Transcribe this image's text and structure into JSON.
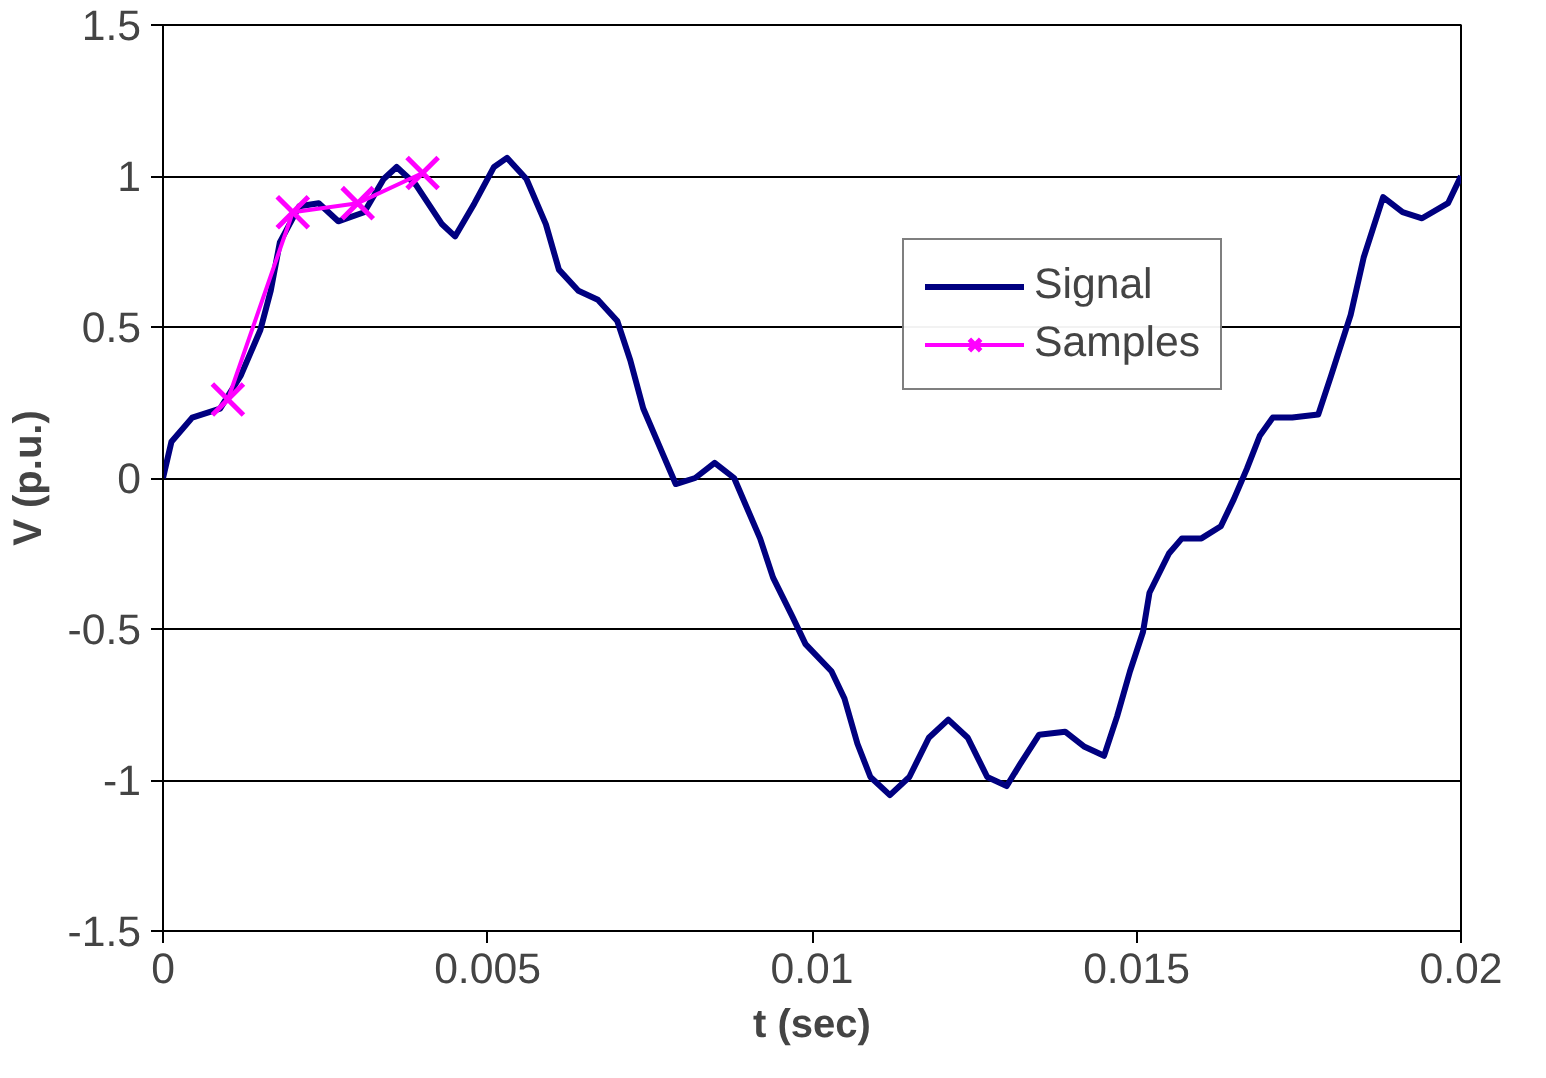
{
  "chart_data": {
    "type": "line",
    "xlabel": "t (sec)",
    "ylabel": "V (p.u.)",
    "xlim": [
      0,
      0.02
    ],
    "ylim": [
      -1.5,
      1.5
    ],
    "xticks": [
      0,
      0.005,
      0.01,
      0.015,
      0.02
    ],
    "yticks": [
      -1.5,
      -1,
      -0.5,
      0,
      0.5,
      1,
      1.5
    ],
    "grid": "y",
    "legend": "right",
    "series": [
      {
        "name": "Signal",
        "color": "#000080",
        "marker": "none",
        "x": [
          0,
          0.00013,
          0.00045,
          0.00088,
          0.0012,
          0.0015,
          0.00166,
          0.0018,
          0.0021,
          0.0024,
          0.0027,
          0.0031,
          0.0034,
          0.0036,
          0.0039,
          0.0043,
          0.0045,
          0.0048,
          0.0051,
          0.0053,
          0.0056,
          0.0059,
          0.0061,
          0.0064,
          0.0067,
          0.007,
          0.0072,
          0.0074,
          0.0077,
          0.0079,
          0.0082,
          0.0085,
          0.0088,
          0.009,
          0.0092,
          0.0094,
          0.0097,
          0.0099,
          0.0103,
          0.0105,
          0.0107,
          0.0109,
          0.0112,
          0.0115,
          0.0118,
          0.0121,
          0.0124,
          0.0127,
          0.013,
          0.0132,
          0.0135,
          0.0139,
          0.0142,
          0.0145,
          0.0147,
          0.0149,
          0.0151,
          0.0152,
          0.0155,
          0.0157,
          0.016,
          0.0163,
          0.0165,
          0.0167,
          0.0169,
          0.0171,
          0.0174,
          0.0178,
          0.018,
          0.0183,
          0.0185,
          0.0188,
          0.0191,
          0.0194,
          0.0198,
          0.02
        ],
        "values": [
          0,
          0.12,
          0.2,
          0.23,
          0.34,
          0.49,
          0.62,
          0.78,
          0.9,
          0.91,
          0.85,
          0.88,
          0.99,
          1.03,
          0.97,
          0.84,
          0.8,
          0.91,
          1.03,
          1.06,
          0.99,
          0.84,
          0.69,
          0.62,
          0.59,
          0.52,
          0.39,
          0.23,
          0.08,
          -0.02,
          0,
          0.05,
          0,
          -0.1,
          -0.2,
          -0.33,
          -0.46,
          -0.55,
          -0.64,
          -0.73,
          -0.88,
          -0.99,
          -1.05,
          -0.99,
          -0.86,
          -0.8,
          -0.86,
          -0.99,
          -1.02,
          -0.95,
          -0.85,
          -0.84,
          -0.89,
          -0.92,
          -0.79,
          -0.64,
          -0.51,
          -0.38,
          -0.25,
          -0.2,
          -0.2,
          -0.16,
          -0.07,
          0.03,
          0.14,
          0.2,
          0.2,
          0.21,
          0.34,
          0.54,
          0.73,
          0.93,
          0.88,
          0.86,
          0.91,
          1.0
        ]
      },
      {
        "name": "Samples",
        "color": "#ff00ff",
        "marker": "cross",
        "x": [
          0.001,
          0.002,
          0.003,
          0.004
        ],
        "values": [
          0.26,
          0.88,
          0.91,
          1.01
        ]
      }
    ]
  }
}
